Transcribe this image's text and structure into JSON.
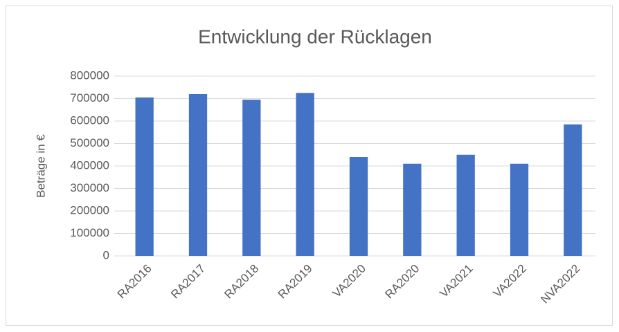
{
  "chart_data": {
    "type": "bar",
    "title": "Entwicklung der Rücklagen",
    "y_label": "Beträge in €",
    "categories": [
      "RA2016",
      "RA2017",
      "RA2018",
      "RA2019",
      "VA2020",
      "RA2020",
      "VA2021",
      "VA2022",
      "NVA2022"
    ],
    "values": [
      705000,
      720000,
      695000,
      725000,
      440000,
      410000,
      450000,
      410000,
      585000
    ],
    "color": "#4472c4",
    "ylim": [
      0,
      800000
    ],
    "yticks": [
      0,
      100000,
      200000,
      300000,
      400000,
      500000,
      600000,
      700000,
      800000
    ],
    "grid": true
  }
}
